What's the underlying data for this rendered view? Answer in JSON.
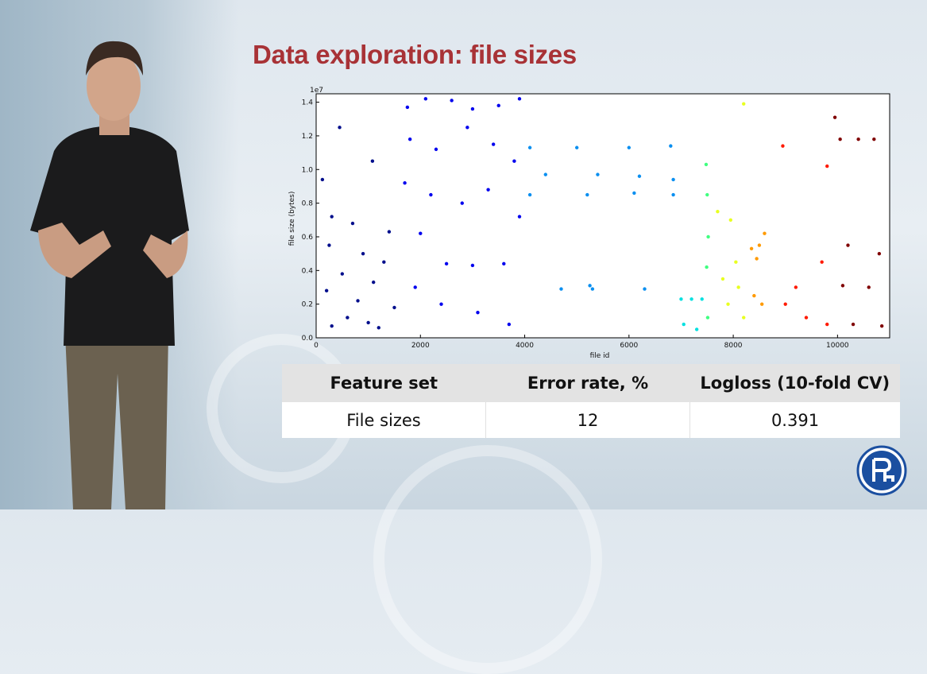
{
  "slide": {
    "title": "Data exploration: file sizes"
  },
  "chart_data": {
    "type": "scatter",
    "xlabel": "file id",
    "ylabel": "file size (bytes)",
    "y_exponent_label": "1e7",
    "xlim": [
      0,
      11000
    ],
    "ylim": [
      0,
      1.45
    ],
    "x_ticks": [
      0,
      2000,
      4000,
      6000,
      8000,
      10000
    ],
    "x_tick_labels": [
      "0",
      "2000",
      "4000",
      "6000",
      "8000",
      "10000"
    ],
    "y_ticks": [
      0,
      0.2,
      0.4,
      0.6,
      0.8,
      1.0,
      1.2,
      1.4
    ],
    "y_tick_labels": [
      "0.0",
      "0.2",
      "0.4",
      "0.6",
      "0.8",
      "1.0",
      "1.2",
      "1.4"
    ],
    "grid": false,
    "colormap": "jet",
    "groups": [
      {
        "x_range": [
          0,
          1550
        ],
        "color": "#000e8c",
        "points": [
          [
            450,
            1.25
          ],
          [
            1080,
            1.05
          ],
          [
            120,
            0.94
          ],
          [
            300,
            0.72
          ],
          [
            700,
            0.68
          ],
          [
            1400,
            0.63
          ],
          [
            250,
            0.55
          ],
          [
            900,
            0.5
          ],
          [
            1300,
            0.45
          ],
          [
            500,
            0.38
          ],
          [
            1100,
            0.33
          ],
          [
            200,
            0.28
          ],
          [
            800,
            0.22
          ],
          [
            1500,
            0.18
          ],
          [
            600,
            0.12
          ],
          [
            1000,
            0.09
          ],
          [
            300,
            0.07
          ],
          [
            1200,
            0.06
          ]
        ]
      },
      {
        "x_range": [
          1550,
          4000
        ],
        "color": "#0000ee",
        "points": [
          [
            1750,
            1.37
          ],
          [
            2100,
            1.42
          ],
          [
            2600,
            1.41
          ],
          [
            3000,
            1.36
          ],
          [
            3500,
            1.38
          ],
          [
            3900,
            1.42
          ],
          [
            1800,
            1.18
          ],
          [
            2300,
            1.12
          ],
          [
            2900,
            1.25
          ],
          [
            3400,
            1.15
          ],
          [
            3800,
            1.05
          ],
          [
            1700,
            0.92
          ],
          [
            2200,
            0.85
          ],
          [
            2800,
            0.8
          ],
          [
            3300,
            0.88
          ],
          [
            3900,
            0.72
          ],
          [
            2000,
            0.62
          ],
          [
            2500,
            0.44
          ],
          [
            3000,
            0.43
          ],
          [
            3600,
            0.44
          ],
          [
            1900,
            0.3
          ],
          [
            2400,
            0.2
          ],
          [
            3100,
            0.15
          ],
          [
            3700,
            0.08
          ]
        ]
      },
      {
        "x_range": [
          4000,
          6900
        ],
        "color": "#0a8ff0",
        "points": [
          [
            4100,
            1.13
          ],
          [
            5000,
            1.13
          ],
          [
            6000,
            1.13
          ],
          [
            6800,
            1.14
          ],
          [
            4400,
            0.97
          ],
          [
            5400,
            0.97
          ],
          [
            6200,
            0.96
          ],
          [
            6850,
            0.94
          ],
          [
            4100,
            0.85
          ],
          [
            5200,
            0.85
          ],
          [
            6100,
            0.86
          ],
          [
            6850,
            0.85
          ],
          [
            4700,
            0.29
          ],
          [
            5250,
            0.31
          ],
          [
            5300,
            0.29
          ],
          [
            6300,
            0.29
          ]
        ]
      },
      {
        "x_range": [
          6950,
          7450
        ],
        "color": "#00e0e0",
        "points": [
          [
            7000,
            0.23
          ],
          [
            7200,
            0.23
          ],
          [
            7400,
            0.23
          ],
          [
            7050,
            0.08
          ],
          [
            7300,
            0.05
          ]
        ]
      },
      {
        "x_range": [
          7450,
          7600
        ],
        "color": "#40ff80",
        "points": [
          [
            7480,
            1.03
          ],
          [
            7500,
            0.85
          ],
          [
            7520,
            0.6
          ],
          [
            7490,
            0.42
          ],
          [
            7510,
            0.12
          ]
        ]
      },
      {
        "x_range": [
          7600,
          8300
        ],
        "color": "#e8ff20",
        "points": [
          [
            7700,
            0.75
          ],
          [
            7950,
            0.7
          ],
          [
            8050,
            0.45
          ],
          [
            8200,
            1.39
          ],
          [
            7800,
            0.35
          ],
          [
            8100,
            0.3
          ],
          [
            7900,
            0.2
          ],
          [
            8200,
            0.12
          ]
        ]
      },
      {
        "x_range": [
          8300,
          8650
        ],
        "color": "#ff9a00",
        "points": [
          [
            8350,
            0.53
          ],
          [
            8500,
            0.55
          ],
          [
            8600,
            0.62
          ],
          [
            8450,
            0.47
          ],
          [
            8400,
            0.25
          ],
          [
            8550,
            0.2
          ]
        ]
      },
      {
        "x_range": [
          8650,
          9900
        ],
        "color": "#ff1a00",
        "points": [
          [
            8950,
            1.14
          ],
          [
            9800,
            1.02
          ],
          [
            9700,
            0.45
          ],
          [
            9200,
            0.3
          ],
          [
            9000,
            0.2
          ],
          [
            9400,
            0.12
          ],
          [
            9800,
            0.08
          ]
        ]
      },
      {
        "x_range": [
          9900,
          10950
        ],
        "color": "#800000",
        "points": [
          [
            9950,
            1.31
          ],
          [
            10050,
            1.18
          ],
          [
            10400,
            1.18
          ],
          [
            10700,
            1.18
          ],
          [
            10200,
            0.55
          ],
          [
            10800,
            0.5
          ],
          [
            10100,
            0.31
          ],
          [
            10600,
            0.3
          ],
          [
            10300,
            0.08
          ],
          [
            10850,
            0.07
          ]
        ]
      }
    ]
  },
  "table": {
    "headers": [
      "Feature set",
      "Error rate, %",
      "Logloss (10-fold CV)"
    ],
    "rows": [
      [
        "File sizes",
        "12",
        "0.391"
      ]
    ]
  },
  "colors": {
    "title": "#a83236",
    "logo_blue": "#1b4fa0"
  },
  "logo_icon": "hse-university-logo"
}
